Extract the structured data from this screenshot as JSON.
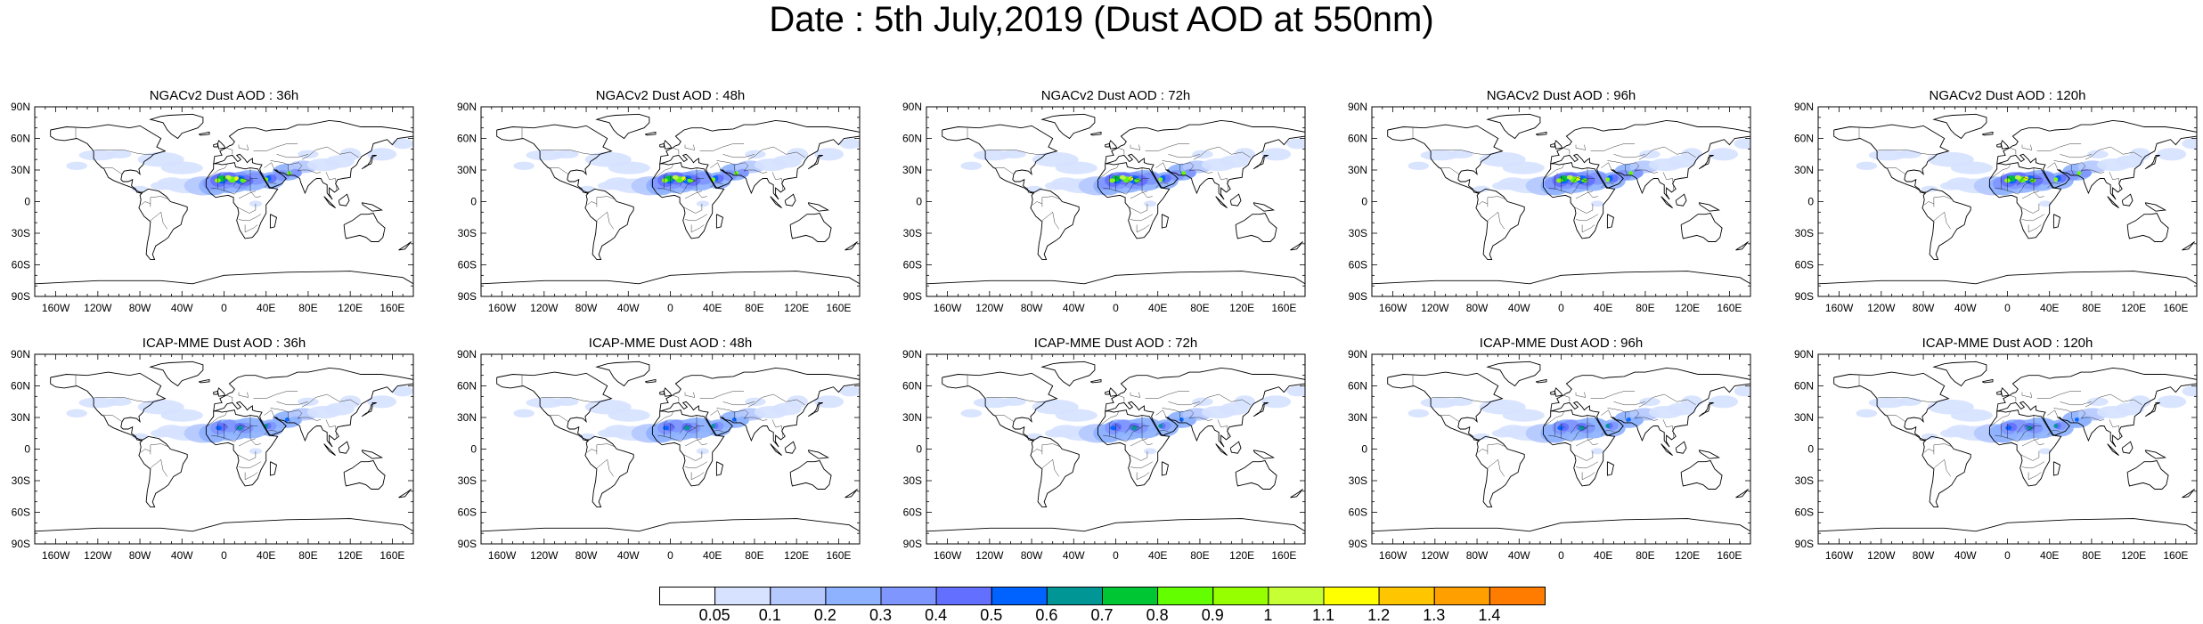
{
  "title": "Date : 5th July,2019 (Dust AOD at 550nm)",
  "lon_ticks": [
    "160W",
    "120W",
    "80W",
    "40W",
    "0",
    "40E",
    "80E",
    "120E",
    "160E"
  ],
  "lat_ticks": [
    "90N",
    "60N",
    "30N",
    "0",
    "30S",
    "60S",
    "90S"
  ],
  "panels": [
    {
      "title": "NGACv2 Dust AOD : 36h",
      "row": 0,
      "col": 0,
      "model": "NGACv2",
      "lead": 36
    },
    {
      "title": "NGACv2 Dust AOD : 48h",
      "row": 0,
      "col": 1,
      "model": "NGACv2",
      "lead": 48
    },
    {
      "title": "NGACv2 Dust AOD : 72h",
      "row": 0,
      "col": 2,
      "model": "NGACv2",
      "lead": 72
    },
    {
      "title": "NGACv2 Dust AOD : 96h",
      "row": 0,
      "col": 3,
      "model": "NGACv2",
      "lead": 96
    },
    {
      "title": "NGACv2 Dust AOD : 120h",
      "row": 0,
      "col": 4,
      "model": "NGACv2",
      "lead": 120
    },
    {
      "title": "ICAP-MME Dust AOD : 36h",
      "row": 1,
      "col": 0,
      "model": "ICAP-MME",
      "lead": 36
    },
    {
      "title": "ICAP-MME Dust AOD : 48h",
      "row": 1,
      "col": 1,
      "model": "ICAP-MME",
      "lead": 48
    },
    {
      "title": "ICAP-MME Dust AOD : 72h",
      "row": 1,
      "col": 2,
      "model": "ICAP-MME",
      "lead": 72
    },
    {
      "title": "ICAP-MME Dust AOD : 96h",
      "row": 1,
      "col": 3,
      "model": "ICAP-MME",
      "lead": 96
    },
    {
      "title": "ICAP-MME Dust AOD : 120h",
      "row": 1,
      "col": 4,
      "model": "ICAP-MME",
      "lead": 120
    }
  ],
  "colorbar": {
    "labels": [
      "0.05",
      "0.1",
      "0.2",
      "0.3",
      "0.4",
      "0.5",
      "0.6",
      "0.7",
      "0.8",
      "0.9",
      "1",
      "1.1",
      "1.2",
      "1.3",
      "1.4"
    ],
    "colors": [
      "#ffffff",
      "#d6e2ff",
      "#b5c9ff",
      "#8eb2ff",
      "#7f96ff",
      "#6370ff",
      "#0063ff",
      "#009696",
      "#00c633",
      "#63ff00",
      "#96ff00",
      "#c6ff33",
      "#ffff00",
      "#ffc600",
      "#ffa000",
      "#ff7c00",
      "#ff1900"
    ]
  }
}
